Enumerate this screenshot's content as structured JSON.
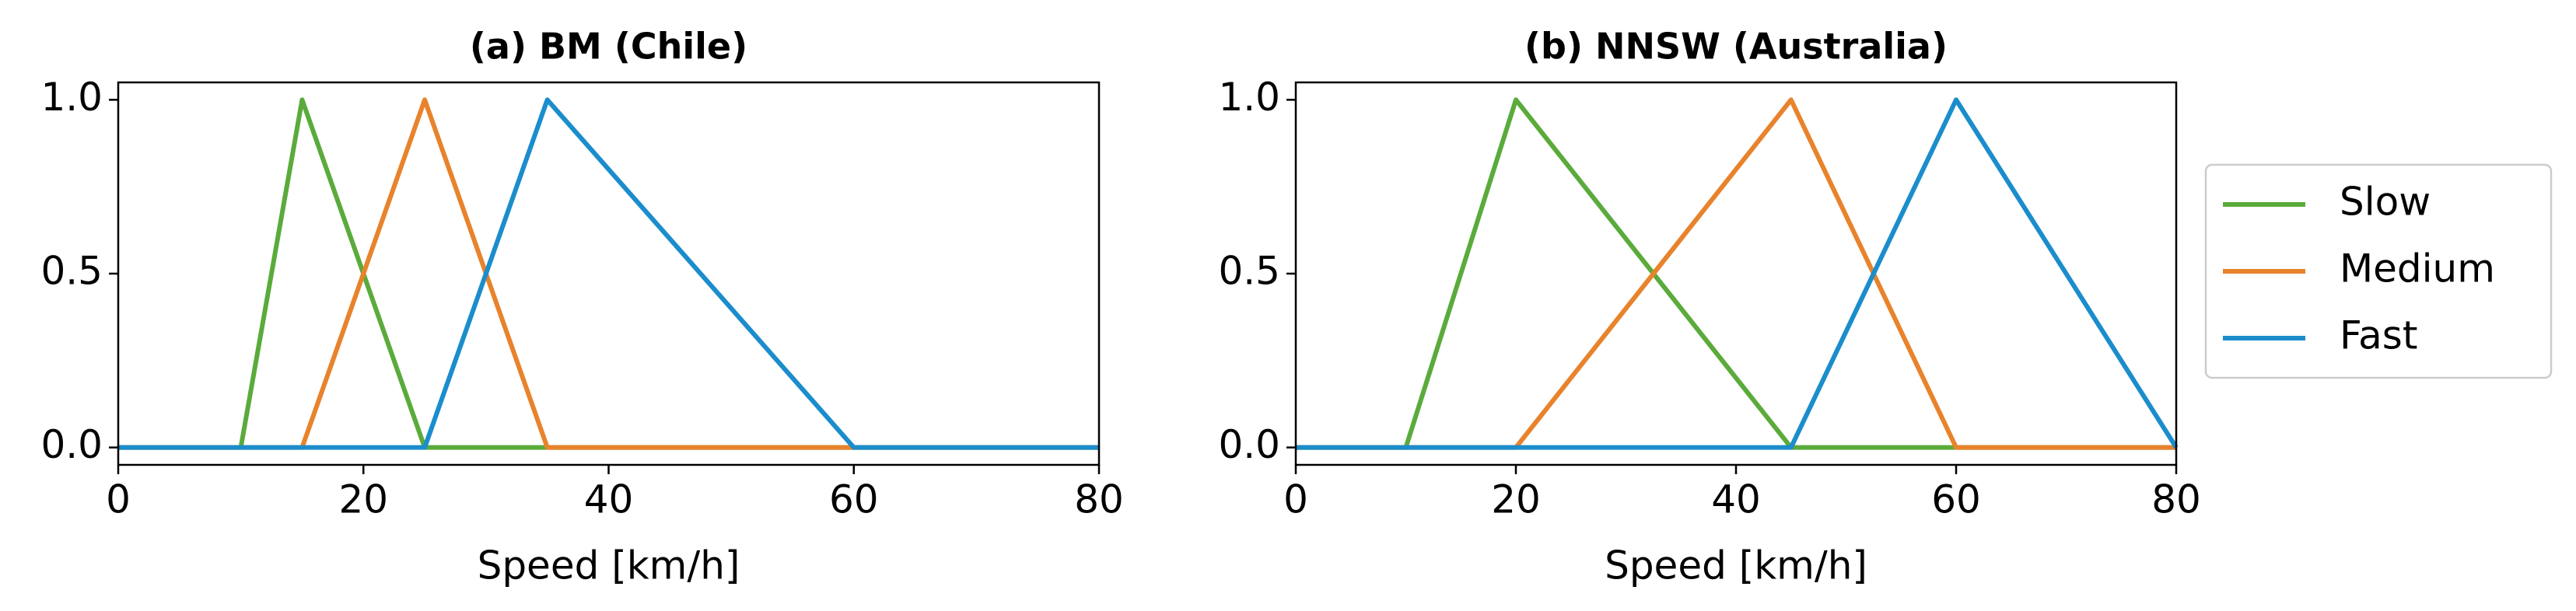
{
  "chart_data": [
    {
      "type": "line",
      "title": "(a) BM (Chile)",
      "x_label": "Speed [km/h]",
      "x": [
        0,
        10,
        15,
        25,
        35,
        60,
        80
      ],
      "series": [
        {
          "name": "Slow",
          "color": "#5aab3b",
          "values": [
            0,
            0,
            1,
            0,
            0,
            0,
            0
          ]
        },
        {
          "name": "Medium",
          "color": "#e8832c",
          "values": [
            0,
            0,
            0,
            1,
            0,
            0,
            0
          ]
        },
        {
          "name": "Fast",
          "color": "#1b8dcc",
          "values": [
            0,
            0,
            0,
            0,
            1,
            0,
            0
          ]
        }
      ],
      "xlim": [
        0,
        80
      ],
      "xticks": [
        0,
        20,
        40,
        60,
        80
      ],
      "ylim": [
        -0.05,
        1.05
      ],
      "yticks": [
        {
          "value": 0,
          "label": "0.0"
        },
        {
          "value": 0.5,
          "label": "0.5"
        },
        {
          "value": 1,
          "label": "1.0"
        }
      ]
    },
    {
      "type": "line",
      "title": "(b) NNSW (Australia)",
      "x_label": "Speed [km/h]",
      "x": [
        0,
        10,
        20,
        45,
        60,
        80
      ],
      "series": [
        {
          "name": "Slow",
          "color": "#5aab3b",
          "values": [
            0,
            0,
            1,
            0,
            0,
            0
          ]
        },
        {
          "name": "Medium",
          "color": "#e8832c",
          "values": [
            0,
            0,
            0,
            1,
            0,
            0
          ]
        },
        {
          "name": "Fast",
          "color": "#1b8dcc",
          "values": [
            0,
            0,
            0,
            0,
            1,
            0
          ]
        }
      ],
      "xlim": [
        0,
        80
      ],
      "xticks": [
        0,
        20,
        40,
        60,
        80
      ],
      "ylim": [
        -0.05,
        1.05
      ],
      "yticks": [
        {
          "value": 0,
          "label": "0.0"
        },
        {
          "value": 0.5,
          "label": "0.5"
        },
        {
          "value": 1,
          "label": "1.0"
        }
      ],
      "legend": "outside-right"
    }
  ]
}
